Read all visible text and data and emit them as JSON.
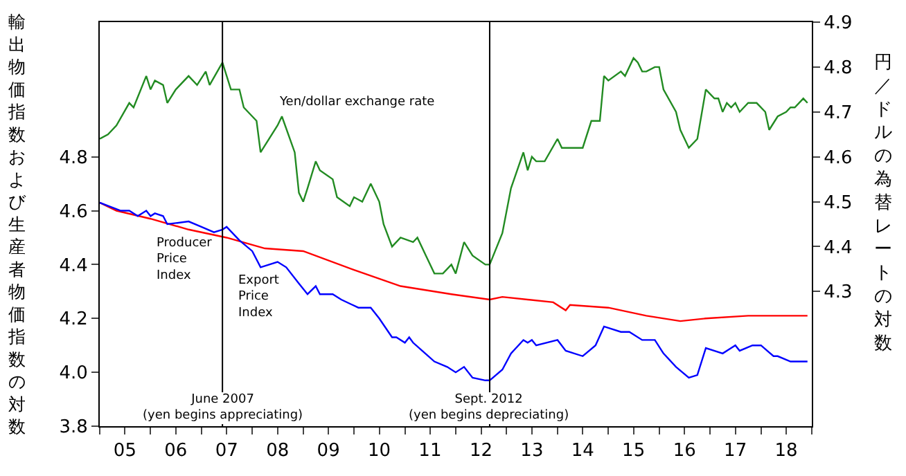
{
  "chart_data": {
    "type": "line",
    "ylabel": "輸出物価指数および生産者物価指数の対数",
    "y2label": "円／ドルの為替レートの対数",
    "xlim": [
      "2005-01",
      "2019-01"
    ],
    "xticks": [
      {
        "value": "2005-01",
        "label": null
      },
      {
        "value": "2005-07",
        "label": "05"
      },
      {
        "value": "2006-01",
        "label": null
      },
      {
        "value": "2006-07",
        "label": "06"
      },
      {
        "value": "2007-01",
        "label": null
      },
      {
        "value": "2007-07",
        "label": "07"
      },
      {
        "value": "2008-01",
        "label": null
      },
      {
        "value": "2008-07",
        "label": "08"
      },
      {
        "value": "2009-01",
        "label": null
      },
      {
        "value": "2009-07",
        "label": "09"
      },
      {
        "value": "2010-01",
        "label": null
      },
      {
        "value": "2010-07",
        "label": "10"
      },
      {
        "value": "2011-01",
        "label": null
      },
      {
        "value": "2011-07",
        "label": "11"
      },
      {
        "value": "2012-01",
        "label": null
      },
      {
        "value": "2012-07",
        "label": "12"
      },
      {
        "value": "2013-01",
        "label": null
      },
      {
        "value": "2013-07",
        "label": "13"
      },
      {
        "value": "2014-01",
        "label": null
      },
      {
        "value": "2014-07",
        "label": "14"
      },
      {
        "value": "2015-01",
        "label": null
      },
      {
        "value": "2015-07",
        "label": "15"
      },
      {
        "value": "2016-01",
        "label": null
      },
      {
        "value": "2016-07",
        "label": "16"
      },
      {
        "value": "2017-01",
        "label": null
      },
      {
        "value": "2017-07",
        "label": "17"
      },
      {
        "value": "2018-01",
        "label": null
      },
      {
        "value": "2018-07",
        "label": "18"
      },
      {
        "value": "2019-01",
        "label": null
      }
    ],
    "ylim": [
      3.8,
      5.3
    ],
    "yticks": [
      3.8,
      {
        "value": 4.0,
        "label": "4.0"
      },
      4.2,
      4.4,
      4.6,
      4.8
    ],
    "y2lim": [
      4.0,
      4.9
    ],
    "y2ticks": [
      4.3,
      4.4,
      4.5,
      4.6,
      4.7,
      4.8,
      4.9
    ],
    "grid": false,
    "legend": false,
    "marker": "none",
    "line_style": "solid",
    "ref_lines": [
      {
        "axis": "x",
        "value": "2007-06",
        "label": "June 2007\n(yen begins appreciating)",
        "color": "#000000"
      },
      {
        "axis": "x",
        "value": "2012-09",
        "label": "Sept. 2012\n(yen begins depreciating)",
        "color": "#000000"
      }
    ],
    "series": [
      {
        "name": "Yen/dollar exchange rate",
        "color": "#228b22",
        "axis": "y2",
        "x": [
          "2005-01",
          "2005-03",
          "2005-05",
          "2005-08",
          "2005-09",
          "2005-12",
          "2006-01",
          "2006-02",
          "2006-04",
          "2006-05",
          "2006-07",
          "2006-10",
          "2006-12",
          "2007-02",
          "2007-03",
          "2007-06",
          "2007-08",
          "2007-10",
          "2007-11",
          "2008-02",
          "2008-03",
          "2008-07",
          "2008-08",
          "2008-11",
          "2008-12",
          "2009-01",
          "2009-02",
          "2009-04",
          "2009-05",
          "2009-08",
          "2009-09",
          "2009-12",
          "2010-01",
          "2010-03",
          "2010-05",
          "2010-07",
          "2010-08",
          "2010-10",
          "2010-12",
          "2011-03",
          "2011-04",
          "2011-06",
          "2011-08",
          "2011-10",
          "2011-12",
          "2012-01",
          "2012-03",
          "2012-05",
          "2012-08",
          "2012-09",
          "2012-12",
          "2013-02",
          "2013-05",
          "2013-06",
          "2013-07",
          "2013-08",
          "2013-10",
          "2014-01",
          "2014-02",
          "2014-04",
          "2014-06",
          "2014-07",
          "2014-09",
          "2014-11",
          "2014-12",
          "2015-01",
          "2015-04",
          "2015-05",
          "2015-07",
          "2015-08",
          "2015-09",
          "2015-10",
          "2015-12",
          "2016-01",
          "2016-02",
          "2016-05",
          "2016-06",
          "2016-08",
          "2016-10",
          "2016-12",
          "2017-01",
          "2017-02",
          "2017-03",
          "2017-04",
          "2017-05",
          "2017-06",
          "2017-07",
          "2017-08",
          "2017-10",
          "2017-12",
          "2018-02",
          "2018-03",
          "2018-05",
          "2018-07",
          "2018-08",
          "2018-09",
          "2018-11",
          "2018-12"
        ],
        "values": [
          4.64,
          4.65,
          4.67,
          4.72,
          4.71,
          4.78,
          4.75,
          4.77,
          4.76,
          4.72,
          4.75,
          4.78,
          4.76,
          4.79,
          4.76,
          4.81,
          4.75,
          4.75,
          4.71,
          4.68,
          4.61,
          4.67,
          4.69,
          4.61,
          4.52,
          4.5,
          4.53,
          4.59,
          4.57,
          4.55,
          4.51,
          4.49,
          4.51,
          4.5,
          4.54,
          4.5,
          4.45,
          4.4,
          4.42,
          4.41,
          4.42,
          4.38,
          4.34,
          4.34,
          4.36,
          4.34,
          4.41,
          4.38,
          4.36,
          4.36,
          4.43,
          4.53,
          4.61,
          4.57,
          4.6,
          4.59,
          4.59,
          4.64,
          4.62,
          4.62,
          4.62,
          4.62,
          4.68,
          4.68,
          4.78,
          4.77,
          4.79,
          4.78,
          4.82,
          4.81,
          4.79,
          4.79,
          4.8,
          4.8,
          4.75,
          4.7,
          4.66,
          4.62,
          4.64,
          4.75,
          4.74,
          4.73,
          4.73,
          4.7,
          4.72,
          4.71,
          4.72,
          4.7,
          4.72,
          4.72,
          4.7,
          4.66,
          4.69,
          4.7,
          4.71,
          4.71,
          4.73,
          4.72
        ]
      },
      {
        "name": "Producer Price Index",
        "color": "#ff0000",
        "x": [
          "2005-01",
          "2005-05",
          "2006-01",
          "2006-10",
          "2007-07",
          "2008-04",
          "2009-01",
          "2010-01",
          "2010-12",
          "2011-12",
          "2012-09",
          "2012-12",
          "2013-12",
          "2014-03",
          "2014-04",
          "2015-01",
          "2015-10",
          "2016-06",
          "2016-12",
          "2017-10",
          "2018-12"
        ],
        "values": [
          4.63,
          4.6,
          4.57,
          4.53,
          4.5,
          4.46,
          4.45,
          4.38,
          4.32,
          4.29,
          4.27,
          4.28,
          4.26,
          4.23,
          4.25,
          4.24,
          4.21,
          4.19,
          4.2,
          4.21,
          4.21
        ]
      },
      {
        "name": "Export Price Index",
        "color": "#0000ff",
        "x": [
          "2005-01",
          "2005-06",
          "2005-08",
          "2005-10",
          "2005-12",
          "2006-01",
          "2006-02",
          "2006-04",
          "2006-05",
          "2006-10",
          "2007-01",
          "2007-04",
          "2007-06",
          "2007-07",
          "2007-10",
          "2008-01",
          "2008-03",
          "2008-07",
          "2008-09",
          "2008-12",
          "2009-02",
          "2009-04",
          "2009-05",
          "2009-08",
          "2009-10",
          "2010-02",
          "2010-05",
          "2010-07",
          "2010-10",
          "2010-11",
          "2011-01",
          "2011-02",
          "2011-03",
          "2011-08",
          "2011-11",
          "2012-01",
          "2012-03",
          "2012-05",
          "2012-08",
          "2012-09",
          "2012-12",
          "2013-02",
          "2013-05",
          "2013-06",
          "2013-07",
          "2013-08",
          "2014-01",
          "2014-03",
          "2014-07",
          "2014-10",
          "2014-12",
          "2015-04",
          "2015-06",
          "2015-09",
          "2015-12",
          "2016-02",
          "2016-05",
          "2016-08",
          "2016-10",
          "2016-12",
          "2017-04",
          "2017-06",
          "2017-07",
          "2017-08",
          "2017-11",
          "2018-01",
          "2018-04",
          "2018-05",
          "2018-08",
          "2018-12"
        ],
        "values": [
          4.63,
          4.6,
          4.6,
          4.58,
          4.6,
          4.58,
          4.59,
          4.58,
          4.55,
          4.56,
          4.54,
          4.52,
          4.53,
          4.54,
          4.49,
          4.45,
          4.39,
          4.41,
          4.39,
          4.33,
          4.29,
          4.32,
          4.29,
          4.29,
          4.27,
          4.24,
          4.24,
          4.2,
          4.13,
          4.13,
          4.11,
          4.13,
          4.11,
          4.04,
          4.02,
          4.0,
          4.02,
          3.98,
          3.97,
          3.97,
          4.01,
          4.07,
          4.12,
          4.11,
          4.12,
          4.1,
          4.12,
          4.08,
          4.06,
          4.1,
          4.17,
          4.15,
          4.15,
          4.12,
          4.12,
          4.07,
          4.02,
          3.98,
          3.99,
          4.09,
          4.07,
          4.09,
          4.1,
          4.08,
          4.1,
          4.1,
          4.06,
          4.06,
          4.04,
          4.04
        ]
      }
    ]
  }
}
